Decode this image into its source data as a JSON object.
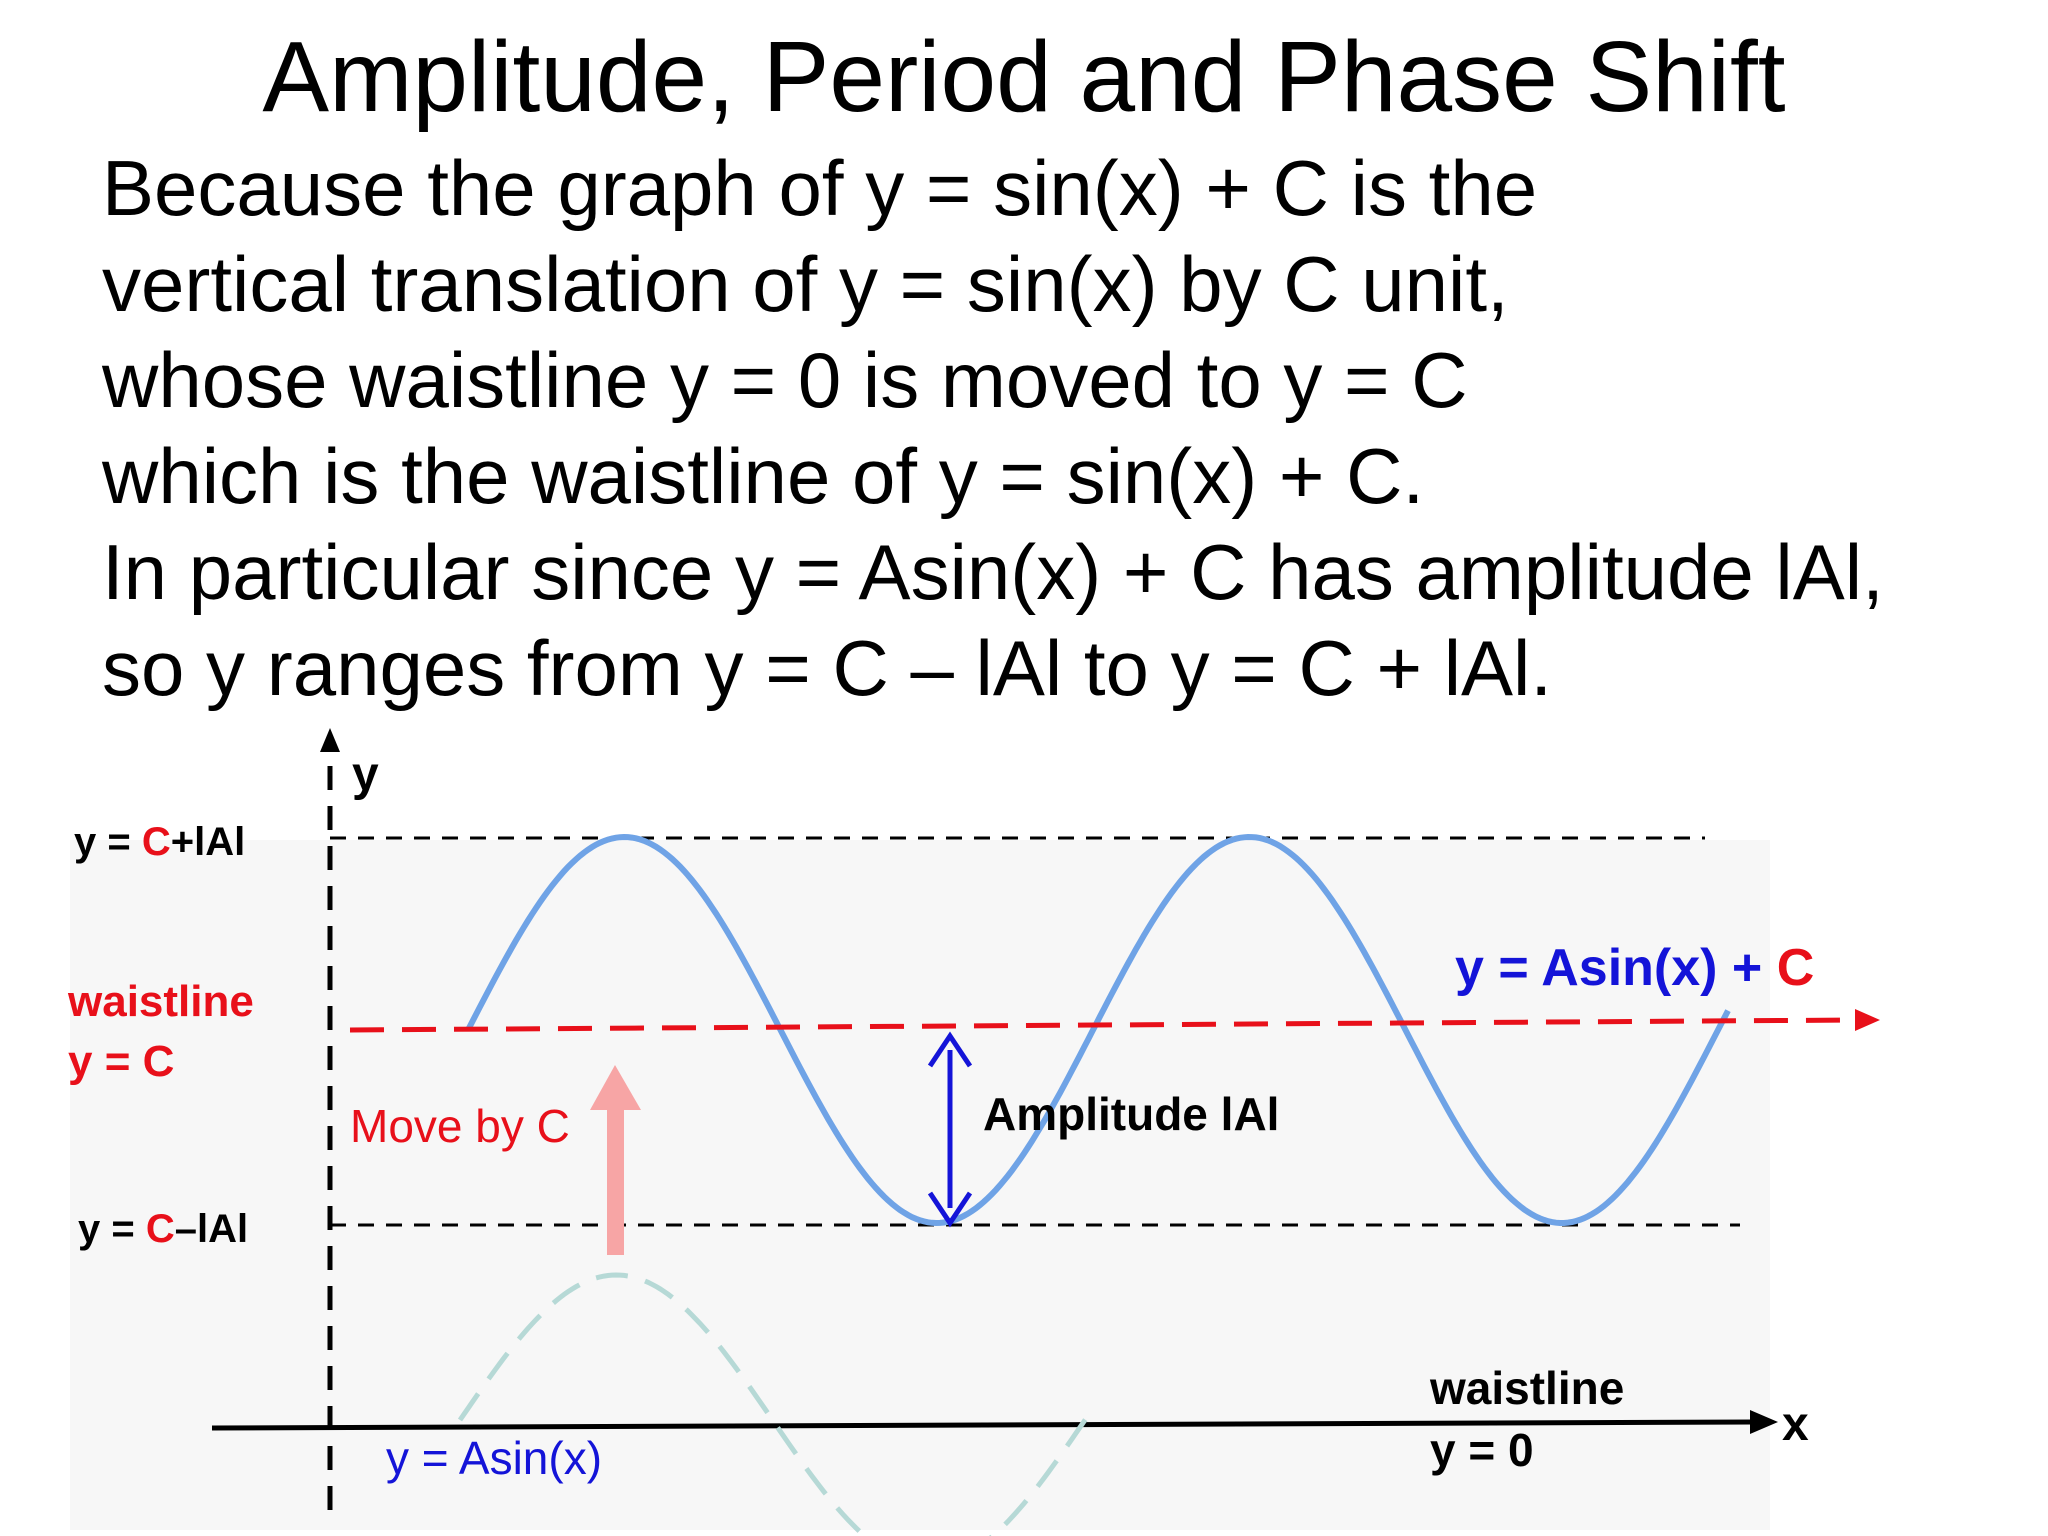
{
  "title": "Amplitude, Period and Phase Shift",
  "paragraph": [
    "Because the graph of y = sin(x) + C is the",
    "vertical translation of y = sin(x) by C unit,",
    "whose waistline y = 0 is moved to y = C",
    "which is the waistline of y = sin(x) + C.",
    "In particular since y = Asin(x) + C has amplitude lAl,",
    "so y ranges from y = C – lAl to y = C + lAl."
  ],
  "diagram": {
    "axis_y": "y",
    "axis_x": "x",
    "top_label": {
      "pre": "y = ",
      "c": "C",
      "post": "+lAl"
    },
    "bottom_label": {
      "pre": "y = ",
      "c": "C",
      "post": "–lAl"
    },
    "waistline_c_line1": "waistline",
    "waistline_c_line2": "y = C",
    "move_label": "Move by C",
    "amplitude_label": "Amplitude lAl",
    "shifted_curve": {
      "pre": "y = Asin(x) + ",
      "c": "C"
    },
    "base_curve_label": "y = Asin(x)",
    "waistline_0_line1": "waistline",
    "waistline_0_line2": "y = 0",
    "colors": {
      "red": "#e8101a",
      "blue": "#1414d8",
      "curve": "#6fa3e6",
      "ghost": "#b6d9d6",
      "arrow_pink": "#f7a5a5"
    }
  }
}
